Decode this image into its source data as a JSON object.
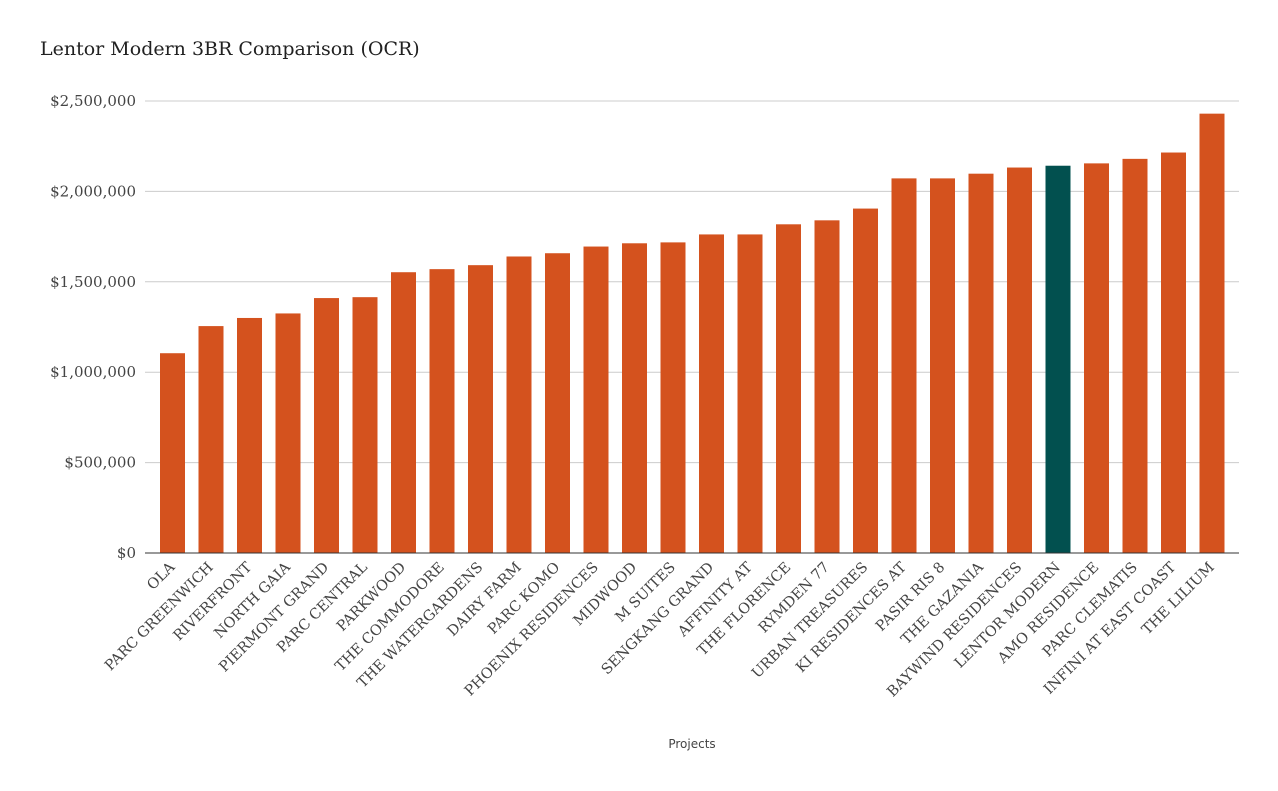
{
  "chart_data": {
    "type": "bar",
    "title": "Lentor Modern 3BR Comparison (OCR)",
    "xlabel": "Projects",
    "ylabel": "",
    "ylim": [
      0,
      2500000
    ],
    "yticks": [
      0,
      500000,
      1000000,
      1500000,
      2000000,
      2500000
    ],
    "ytick_labels": [
      "$0",
      "$500,000",
      "$1,000,000",
      "$1,500,000",
      "$2,000,000",
      "$2,500,000"
    ],
    "grid": true,
    "legend": "none",
    "bar_color": "#D4521E",
    "highlight_color": "#02504F",
    "highlight_category": "LENTOR MODERN",
    "categories": [
      "OLA",
      "PARC GREENWICH",
      "RIVERFRONT",
      "NORTH GAIA",
      "PIERMONT GRAND",
      "PARC CENTRAL",
      "PARKWOOD",
      "THE COMMODORE",
      "THE WATERGARDENS",
      "DAIRY FARM",
      "PARC KOMO",
      "PHOENIX RESIDENCES",
      "MIDWOOD",
      "M SUITES",
      "SENGKANG GRAND",
      "AFFINITY AT",
      "THE FLORENCE",
      "RYMDEN 77",
      "URBAN TREASURES",
      "KI RESIDENCES AT",
      "PASIR RIS 8",
      "THE GAZANIA",
      "BAYWIND RESIDENCES",
      "LENTOR MODERN",
      "AMO RESIDENCE",
      "PARC CLEMATIS",
      "INFINI AT EAST COAST",
      "THE LILIUM"
    ],
    "values": [
      1105000,
      1255000,
      1300000,
      1325000,
      1410000,
      1415000,
      1553000,
      1570000,
      1592000,
      1640000,
      1658000,
      1695000,
      1713000,
      1718000,
      1762000,
      1762000,
      1818000,
      1840000,
      1905000,
      2072000,
      2072000,
      2098000,
      2132000,
      2142000,
      2155000,
      2180000,
      2215000,
      2430000
    ]
  }
}
